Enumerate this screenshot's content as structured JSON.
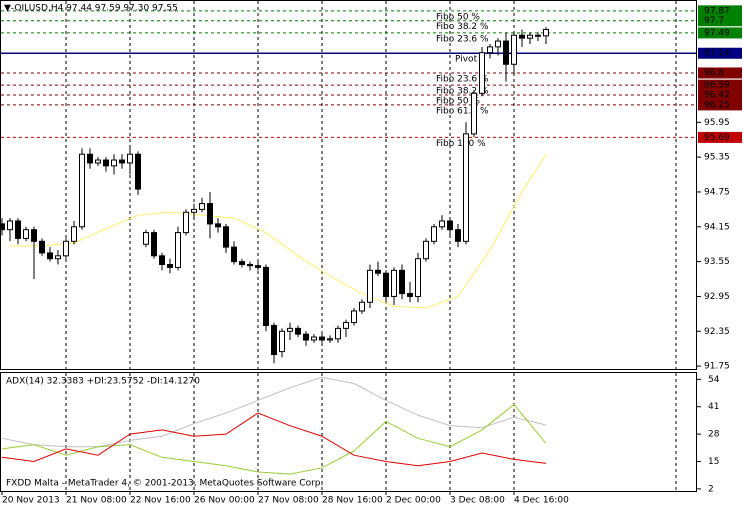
{
  "chart_data": [
    {
      "type": "candlestick",
      "title": "▼-OILUSD,H4  97.44 97.59 97.30 97.55",
      "categories": [
        "20 Nov 2013",
        null,
        null,
        null,
        null,
        null,
        null,
        null,
        "21 Nov 08:00",
        null,
        null,
        null,
        null,
        null,
        null,
        null,
        "22 Nov 16:00",
        null,
        null,
        null,
        null,
        null,
        null,
        null,
        "26 Nov 00:00",
        null,
        null,
        null,
        null,
        null,
        null,
        null,
        "27 Nov 08:00",
        null,
        null,
        null,
        null,
        null,
        null,
        null,
        "28 Nov 16:00",
        null,
        null,
        null,
        null,
        null,
        null,
        null,
        "2 Dec 00:00",
        null,
        null,
        null,
        null,
        null,
        null,
        null,
        "3 Dec 08:00",
        null,
        null,
        null,
        null,
        null,
        null,
        null,
        "4 Dec 16:00",
        null,
        null,
        null,
        null
      ],
      "open": [
        94.2,
        94.1,
        94.25,
        93.95,
        94.1,
        93.9,
        93.7,
        93.6,
        93.65,
        93.9,
        94.15,
        95.4,
        95.25,
        95.3,
        95.2,
        95.3,
        95.25,
        95.4,
        93.85,
        94.05,
        93.65,
        93.5,
        93.45,
        94.05,
        94.4,
        94.45,
        94.55,
        94.2,
        94.15,
        93.8,
        93.55,
        93.5,
        93.48,
        93.45,
        92.45,
        92.0,
        92.35,
        92.4,
        92.3,
        92.2,
        92.25,
        92.2,
        92.22,
        92.4,
        92.5,
        92.7,
        92.85,
        93.4,
        93.35,
        92.95,
        93.4,
        93.0,
        92.95,
        93.6,
        93.9,
        94.15,
        94.25,
        94.1,
        93.9,
        95.75,
        96.45,
        97.15,
        97.25,
        97.35,
        96.95,
        97.45,
        97.4,
        97.45,
        97.44
      ],
      "high": [
        94.3,
        94.3,
        94.3,
        94.15,
        94.15,
        93.95,
        93.8,
        93.75,
        93.95,
        94.25,
        95.5,
        95.5,
        95.35,
        95.35,
        95.4,
        95.4,
        95.55,
        95.45,
        94.1,
        94.1,
        93.7,
        93.6,
        94.15,
        94.45,
        94.55,
        94.65,
        94.75,
        94.3,
        94.2,
        93.9,
        93.6,
        93.55,
        93.55,
        93.5,
        92.5,
        92.4,
        92.5,
        92.45,
        92.35,
        92.3,
        92.35,
        92.28,
        92.45,
        92.55,
        92.75,
        92.9,
        93.5,
        93.55,
        93.4,
        93.45,
        93.5,
        93.2,
        93.7,
        93.95,
        94.2,
        94.35,
        94.3,
        94.2,
        95.95,
        96.5,
        97.25,
        97.3,
        97.4,
        97.5,
        97.5,
        97.55,
        97.5,
        97.5,
        97.59
      ],
      "low": [
        94.0,
        93.9,
        93.85,
        93.9,
        93.25,
        93.65,
        93.55,
        93.5,
        93.6,
        93.85,
        94.1,
        95.15,
        95.2,
        95.1,
        95.05,
        95.15,
        95.05,
        94.7,
        93.8,
        93.6,
        93.4,
        93.35,
        93.4,
        94.0,
        94.3,
        94.4,
        93.95,
        94.05,
        93.7,
        93.5,
        93.45,
        93.4,
        93.4,
        92.35,
        91.8,
        91.9,
        92.2,
        92.25,
        92.1,
        92.15,
        92.15,
        92.15,
        92.15,
        92.25,
        92.45,
        92.65,
        92.75,
        93.3,
        92.85,
        92.8,
        92.9,
        92.85,
        92.85,
        93.55,
        93.85,
        94.1,
        94.0,
        93.8,
        93.85,
        95.7,
        96.4,
        97.05,
        97.1,
        96.65,
        96.8,
        97.25,
        97.3,
        97.35,
        97.3
      ],
      "close": [
        94.1,
        94.25,
        93.95,
        94.1,
        93.9,
        93.7,
        93.6,
        93.65,
        93.9,
        94.15,
        95.4,
        95.25,
        95.3,
        95.2,
        95.3,
        95.25,
        95.4,
        94.8,
        94.05,
        93.65,
        93.5,
        93.45,
        94.05,
        94.4,
        94.45,
        94.55,
        94.2,
        94.15,
        93.8,
        93.55,
        93.5,
        93.48,
        93.45,
        92.45,
        91.95,
        92.35,
        92.4,
        92.3,
        92.2,
        92.25,
        92.2,
        92.22,
        92.4,
        92.5,
        92.7,
        92.85,
        93.4,
        93.35,
        92.95,
        93.4,
        93.0,
        92.95,
        93.6,
        93.9,
        94.15,
        94.25,
        94.1,
        93.9,
        95.75,
        96.45,
        97.15,
        97.25,
        97.35,
        96.95,
        97.45,
        97.4,
        97.45,
        97.44,
        97.55
      ],
      "bull_color": "#ffffff",
      "bear_color": "#000000",
      "ma": {
        "color": "#ffee66",
        "x": [
          1,
          5,
          9,
          13,
          17,
          21,
          25,
          29,
          33,
          37,
          41,
          45,
          49,
          53,
          57,
          61,
          65,
          68
        ],
        "values": [
          93.82,
          93.82,
          93.87,
          94.12,
          94.35,
          94.4,
          94.35,
          94.3,
          94.05,
          93.65,
          93.3,
          93.0,
          92.78,
          92.75,
          92.95,
          93.75,
          94.75,
          95.4
        ]
      },
      "levels": [
        {
          "value": 97.87,
          "label": "Fibo 50 %",
          "color": "#008000"
        },
        {
          "value": 97.7,
          "label": "Fibo 38.2 %",
          "color": "#008000"
        },
        {
          "value": 97.49,
          "label": "Fibo 23.6 %",
          "color": "#008000"
        },
        {
          "value": 97.14,
          "label": "Pivot",
          "color": "#000080"
        },
        {
          "value": 96.8,
          "label": "Fibo 23.6 %",
          "color": "#800000"
        },
        {
          "value": 96.59,
          "label": "Fibo 38.2 %",
          "color": "#800000"
        },
        {
          "value": 96.42,
          "label": "Fibo 50 %",
          "color": "#800000"
        },
        {
          "value": 96.25,
          "label": "Fibo 61.8 %",
          "color": "#800000"
        },
        {
          "value": 95.69,
          "label": "Fibo 100 %",
          "color": "#c00000"
        }
      ],
      "ylim": [
        91.7,
        98.04
      ],
      "yticks": [
        91.75,
        92.35,
        92.95,
        93.55,
        94.15,
        94.75,
        95.35,
        95.95
      ]
    },
    {
      "type": "line",
      "title": "ADX(14) 32.3383 +DI:23.5752 -DI:14.1270",
      "footer": "FXDD Malta - MetaTrader 4, © 2001-2013, MetaQuotes Software Corp.",
      "x": [
        0,
        4,
        8,
        12,
        16,
        20,
        24,
        28,
        32,
        36,
        40,
        44,
        48,
        52,
        56,
        60,
        64,
        68
      ],
      "series": [
        {
          "color": "#c0c0c0",
          "values": [
            26,
            23,
            22,
            22,
            25,
            27,
            33,
            38,
            44,
            50,
            55,
            52,
            44,
            37,
            32,
            31,
            36,
            32.3383
          ]
        },
        {
          "color": "#9acd32",
          "values": [
            21,
            23,
            18,
            22,
            23,
            17,
            15,
            13,
            10,
            9,
            12,
            20,
            34,
            26,
            22,
            30,
            42,
            23.5752
          ]
        },
        {
          "color": "#e00000",
          "values": [
            17,
            15,
            21,
            18,
            28,
            30,
            27,
            28,
            38,
            32,
            27,
            18,
            15,
            13,
            15,
            19,
            16,
            14.127
          ]
        }
      ],
      "ylim": [
        1,
        57
      ],
      "yticks": [
        2,
        15,
        28,
        41,
        54
      ]
    }
  ]
}
